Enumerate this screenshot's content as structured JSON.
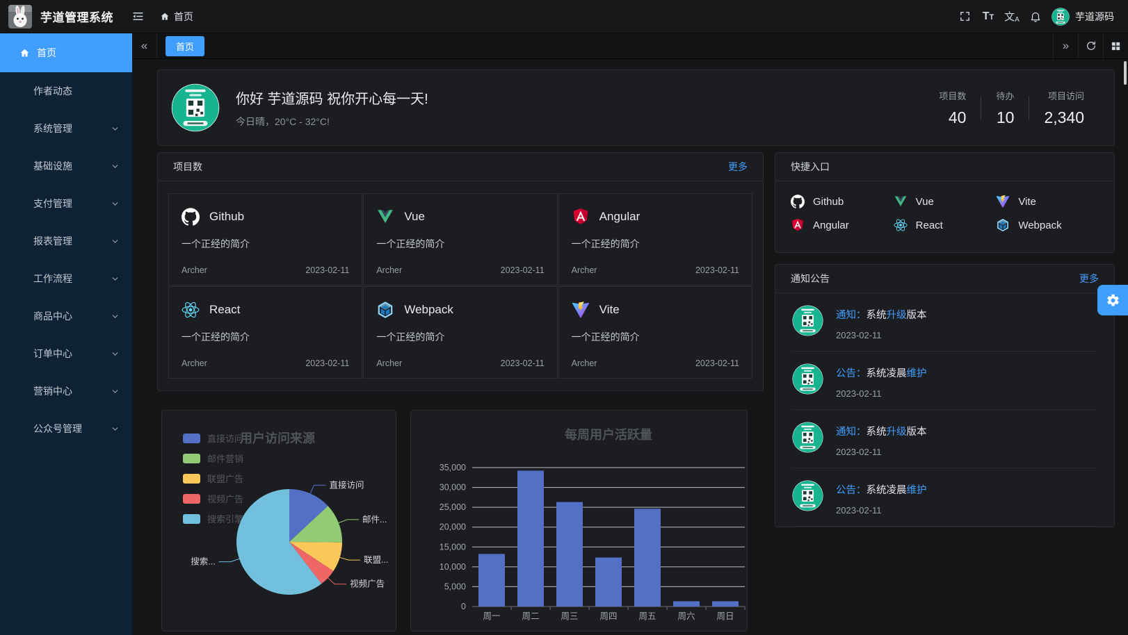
{
  "colors": {
    "accent": "#409eff",
    "sidebar_bg": "#0e2236",
    "active_tab": "#409eff"
  },
  "icons": {
    "logo": "rabbit-photo",
    "collapse_menu": "fold-lines",
    "home": "house",
    "fullscreen": "corner-brackets",
    "font_size": "Tt",
    "locale": "wen-A",
    "notifications": "bell-outline",
    "user_avatar": "green-qr-circle",
    "tab_back": "«",
    "tab_forward": "»",
    "refresh": "circular-arrow",
    "layout_grid": "four-squares",
    "settings": "gear",
    "menu_expand": "chevron-down"
  },
  "header": {
    "app_title": "芋道管理系统",
    "breadcrumb_home": "首页",
    "username": "芋道源码"
  },
  "sidebar": {
    "items": [
      {
        "key": "home",
        "label": "首页",
        "icon": "home",
        "active": true,
        "expandable": false
      },
      {
        "key": "author-news",
        "label": "作者动态",
        "active": false,
        "expandable": false
      },
      {
        "key": "system",
        "label": "系统管理",
        "active": false,
        "expandable": true
      },
      {
        "key": "infra",
        "label": "基础设施",
        "active": false,
        "expandable": true
      },
      {
        "key": "pay",
        "label": "支付管理",
        "active": false,
        "expandable": true
      },
      {
        "key": "report",
        "label": "报表管理",
        "active": false,
        "expandable": true
      },
      {
        "key": "workflow",
        "label": "工作流程",
        "active": false,
        "expandable": true
      },
      {
        "key": "product",
        "label": "商品中心",
        "active": false,
        "expandable": true
      },
      {
        "key": "order",
        "label": "订单中心",
        "active": false,
        "expandable": true
      },
      {
        "key": "marketing",
        "label": "营销中心",
        "active": false,
        "expandable": true
      },
      {
        "key": "mp",
        "label": "公众号管理",
        "active": false,
        "expandable": true
      }
    ]
  },
  "tabbar": {
    "tabs": [
      {
        "label": "首页",
        "active": true
      }
    ]
  },
  "welcome": {
    "greeting": "你好 芋道源码 祝你开心每一天!",
    "weather": "今日晴，20°C - 32°C!",
    "stats": [
      {
        "label": "项目数",
        "value": "40"
      },
      {
        "label": "待办",
        "value": "10"
      },
      {
        "label": "项目访问",
        "value": "2,340"
      }
    ]
  },
  "projects": {
    "title": "项目数",
    "more_label": "更多",
    "items": [
      {
        "name": "Github",
        "icon": "github",
        "desc": "一个正经的简介",
        "author": "Archer",
        "date": "2023-02-11"
      },
      {
        "name": "Vue",
        "icon": "vue",
        "desc": "一个正经的简介",
        "author": "Archer",
        "date": "2023-02-11"
      },
      {
        "name": "Angular",
        "icon": "angular",
        "desc": "一个正经的简介",
        "author": "Archer",
        "date": "2023-02-11"
      },
      {
        "name": "React",
        "icon": "react",
        "desc": "一个正经的简介",
        "author": "Archer",
        "date": "2023-02-11"
      },
      {
        "name": "Webpack",
        "icon": "webpack",
        "desc": "一个正经的简介",
        "author": "Archer",
        "date": "2023-02-11"
      },
      {
        "name": "Vite",
        "icon": "vite",
        "desc": "一个正经的简介",
        "author": "Archer",
        "date": "2023-02-11"
      }
    ]
  },
  "shortcuts": {
    "title": "快捷入口",
    "items": [
      {
        "label": "Github",
        "icon": "github"
      },
      {
        "label": "Vue",
        "icon": "vue"
      },
      {
        "label": "Vite",
        "icon": "vite"
      },
      {
        "label": "Angular",
        "icon": "angular"
      },
      {
        "label": "React",
        "icon": "react"
      },
      {
        "label": "Webpack",
        "icon": "webpack"
      }
    ]
  },
  "notices": {
    "title": "通知公告",
    "more_label": "更多",
    "items": [
      {
        "parts": [
          {
            "text": "通知：",
            "accent": true
          },
          {
            "text": "系统",
            "accent": false
          },
          {
            "text": "升级",
            "accent": true
          },
          {
            "text": "版本",
            "accent": false
          }
        ],
        "date": "2023-02-11"
      },
      {
        "parts": [
          {
            "text": "公告：",
            "accent": true
          },
          {
            "text": "系统凌晨",
            "accent": false
          },
          {
            "text": "维护",
            "accent": true
          }
        ],
        "date": "2023-02-11"
      },
      {
        "parts": [
          {
            "text": "通知：",
            "accent": true
          },
          {
            "text": "系统",
            "accent": false
          },
          {
            "text": "升级",
            "accent": true
          },
          {
            "text": "版本",
            "accent": false
          }
        ],
        "date": "2023-02-11"
      },
      {
        "parts": [
          {
            "text": "公告：",
            "accent": true
          },
          {
            "text": "系统凌晨",
            "accent": false
          },
          {
            "text": "维护",
            "accent": true
          }
        ],
        "date": "2023-02-11"
      }
    ]
  },
  "chart_data": [
    {
      "type": "pie",
      "title": "用户访问来源",
      "legend_position": "top-left",
      "series": [
        {
          "name": "直接访问",
          "value": 335,
          "color": "#5470c6",
          "callout_label": "直接访问"
        },
        {
          "name": "邮件营销",
          "value": 310,
          "color": "#91cc75",
          "callout_label": "邮件..."
        },
        {
          "name": "联盟广告",
          "value": 234,
          "color": "#fac858",
          "callout_label": "联盟..."
        },
        {
          "name": "视频广告",
          "value": 135,
          "color": "#ee6666",
          "callout_label": "视频广告"
        },
        {
          "name": "搜索引擎",
          "value": 1548,
          "color": "#73c0de",
          "callout_label": "搜索..."
        }
      ]
    },
    {
      "type": "bar",
      "title": "每周用户活跃量",
      "categories": [
        "周一",
        "周二",
        "周三",
        "周四",
        "周五",
        "周六",
        "周日"
      ],
      "values": [
        13253,
        34235,
        26321,
        12340,
        24643,
        1322,
        1324
      ],
      "ylim": [
        0,
        35000
      ],
      "ytick_step": 5000,
      "bar_color": "#5470c6",
      "grid": true,
      "xlabel": "",
      "ylabel": ""
    }
  ]
}
